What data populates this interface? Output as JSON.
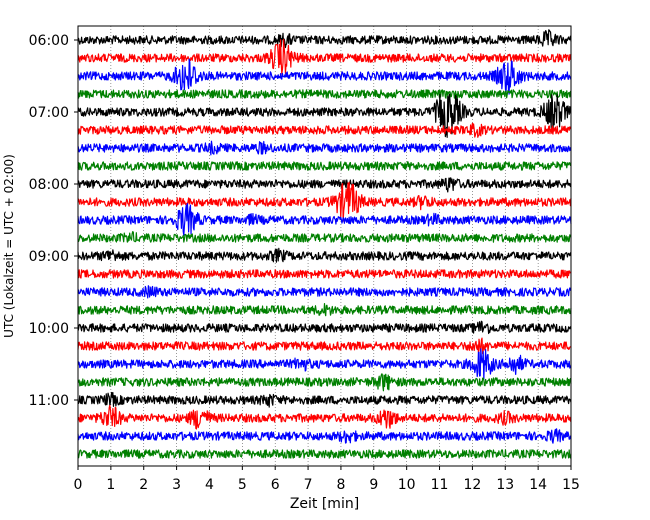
{
  "chart_data": {
    "type": "line",
    "title": "",
    "xlabel": "Zeit  [min]",
    "ylabel": "UTC (Lokalzeit = UTC + 02:00)",
    "xlim": [
      0,
      15
    ],
    "x_ticks": [
      "0",
      "1",
      "2",
      "3",
      "4",
      "5",
      "6",
      "7",
      "8",
      "9",
      "10",
      "11",
      "12",
      "13",
      "14",
      "15"
    ],
    "y_ticks": [
      "06:00",
      "07:00",
      "08:00",
      "09:00",
      "10:00",
      "11:00"
    ],
    "trace_interval_min": 15,
    "trace_colors": [
      "#000000",
      "#ff0000",
      "#0000ff",
      "#008000"
    ],
    "grid": "dotted vertical at every minute",
    "traces": [
      {
        "start": "06:00",
        "events": [
          [
            6.3,
            0.6
          ],
          [
            14.3,
            1.0
          ]
        ]
      },
      {
        "start": "06:15",
        "events": [
          [
            6.2,
            2.5
          ]
        ]
      },
      {
        "start": "06:30",
        "events": [
          [
            3.3,
            2.6
          ],
          [
            13.1,
            2.5
          ]
        ]
      },
      {
        "start": "06:45",
        "events": []
      },
      {
        "start": "07:00",
        "events": [
          [
            11.1,
            1.0
          ],
          [
            11.3,
            3.0
          ],
          [
            14.5,
            2.5
          ]
        ]
      },
      {
        "start": "07:15",
        "events": [
          [
            12.1,
            0.6
          ]
        ]
      },
      {
        "start": "07:30",
        "events": [
          [
            4.1,
            0.5
          ],
          [
            5.6,
            0.5
          ]
        ]
      },
      {
        "start": "07:45",
        "events": []
      },
      {
        "start": "08:00",
        "events": [
          [
            11.3,
            0.8
          ]
        ]
      },
      {
        "start": "08:15",
        "events": [
          [
            8.2,
            3.0
          ],
          [
            10.5,
            0.7
          ]
        ]
      },
      {
        "start": "08:30",
        "events": [
          [
            3.3,
            2.2
          ],
          [
            5.3,
            0.4
          ],
          [
            10.8,
            0.5
          ]
        ]
      },
      {
        "start": "08:45",
        "events": [
          [
            1.6,
            0.4
          ]
        ]
      },
      {
        "start": "09:00",
        "events": [
          [
            1.0,
            0.6
          ],
          [
            6.1,
            0.6
          ]
        ]
      },
      {
        "start": "09:15",
        "events": []
      },
      {
        "start": "09:30",
        "events": [
          [
            2.2,
            0.5
          ]
        ]
      },
      {
        "start": "09:45",
        "events": [
          [
            7.5,
            0.5
          ]
        ]
      },
      {
        "start": "10:00",
        "events": [
          [
            12.3,
            0.7
          ]
        ]
      },
      {
        "start": "10:15",
        "events": [
          [
            12.2,
            0.8
          ]
        ]
      },
      {
        "start": "10:30",
        "events": [
          [
            6.8,
            0.7
          ],
          [
            12.3,
            2.2
          ],
          [
            13.3,
            1.2
          ]
        ]
      },
      {
        "start": "10:45",
        "events": [
          [
            9.3,
            1.0
          ]
        ]
      },
      {
        "start": "11:00",
        "events": [
          [
            1.0,
            0.6
          ],
          [
            5.8,
            0.6
          ]
        ]
      },
      {
        "start": "11:15",
        "events": [
          [
            1.0,
            1.5
          ],
          [
            3.7,
            1.5
          ],
          [
            9.4,
            1.3
          ],
          [
            13.0,
            0.6
          ]
        ]
      },
      {
        "start": "11:30",
        "events": [
          [
            8.2,
            0.7
          ],
          [
            14.5,
            0.6
          ]
        ]
      },
      {
        "start": "11:45",
        "events": []
      }
    ]
  }
}
